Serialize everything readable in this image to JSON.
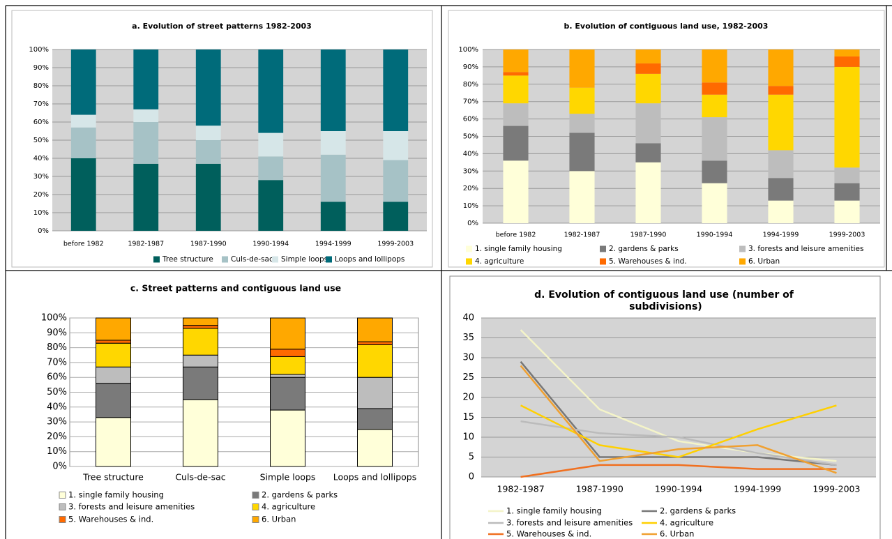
{
  "chart_data": [
    {
      "type": "stacked_bar",
      "title": "a. Evolution of street patterns 1982-2003",
      "categories": [
        "before 1982",
        "1982-1987",
        "1987-1990",
        "1990-1994",
        "1994-1999",
        "1999-2003"
      ],
      "series": [
        {
          "name": "Tree structure",
          "color": "#005f5c",
          "values": [
            40,
            37,
            37,
            28,
            16,
            16
          ]
        },
        {
          "name": "Culs-de-sac",
          "color": "#a6c2c6",
          "values": [
            17,
            23,
            13,
            13,
            26,
            23
          ]
        },
        {
          "name": "Simple loops",
          "color": "#d6e6e8",
          "values": [
            7,
            7,
            8,
            13,
            13,
            16
          ]
        },
        {
          "name": "Loops and lollipops",
          "color": "#006b7a",
          "values": [
            36,
            33,
            42,
            46,
            45,
            45
          ]
        }
      ],
      "ylim": [
        0,
        100
      ],
      "yticks": [
        {
          "value": 0,
          "label": "0%"
        },
        {
          "value": 10,
          "label": "10%"
        },
        {
          "value": 20,
          "label": "20%"
        },
        {
          "value": 30,
          "label": "30%"
        },
        {
          "value": 40,
          "label": "40%"
        },
        {
          "value": 50,
          "label": "50%"
        },
        {
          "value": 60,
          "label": "60%"
        },
        {
          "value": 70,
          "label": "70%"
        },
        {
          "value": 80,
          "label": "80%"
        },
        {
          "value": 90,
          "label": "90%"
        },
        {
          "value": 100,
          "label": "100%"
        }
      ],
      "grid": true
    },
    {
      "type": "stacked_bar",
      "title": "b. Evolution of contiguous land use, 1982-2003",
      "categories": [
        "before 1982",
        "1982-1987",
        "1987-1990",
        "1990-1994",
        "1994-1999",
        "1999-2003"
      ],
      "series": [
        {
          "name": "1. single family housing",
          "color": "#ffffd9",
          "values": [
            36,
            30,
            35,
            23,
            13,
            13
          ]
        },
        {
          "name": "2. gardens & parks",
          "color": "#7a7a7a",
          "values": [
            20,
            22,
            11,
            13,
            13,
            10
          ]
        },
        {
          "name": "3. forests and leisure amenities",
          "color": "#bdbdbd",
          "values": [
            13,
            11,
            23,
            25,
            16,
            9
          ]
        },
        {
          "name": "4. agriculture",
          "color": "#ffd700",
          "values": [
            16,
            15,
            17,
            13,
            32,
            58
          ]
        },
        {
          "name": "5. Warehouses & ind.",
          "color": "#ff6a00",
          "values": [
            2,
            0,
            6,
            7,
            5,
            6
          ]
        },
        {
          "name": "6. Urban",
          "color": "#ffa800",
          "values": [
            13,
            22,
            8,
            19,
            21,
            4
          ]
        }
      ],
      "ylim": [
        0,
        100
      ],
      "yticks": [
        {
          "value": 0,
          "label": "0%"
        },
        {
          "value": 10,
          "label": "10%"
        },
        {
          "value": 20,
          "label": "20%"
        },
        {
          "value": 30,
          "label": "30%"
        },
        {
          "value": 40,
          "label": "40%"
        },
        {
          "value": 50,
          "label": "50%"
        },
        {
          "value": 60,
          "label": "60%"
        },
        {
          "value": 70,
          "label": "70%"
        },
        {
          "value": 80,
          "label": "80%"
        },
        {
          "value": 90,
          "label": "90%"
        },
        {
          "value": 100,
          "label": "100%"
        }
      ],
      "grid": true
    },
    {
      "type": "stacked_bar",
      "title": "c. Street patterns and contiguous land use",
      "categories": [
        "Tree structure",
        "Culs-de-sac",
        "Simple loops",
        "Loops and lollipops"
      ],
      "series": [
        {
          "name": "1. single family housing",
          "color": "#ffffd9",
          "values": [
            33,
            45,
            38,
            25
          ]
        },
        {
          "name": "2. gardens & parks",
          "color": "#7a7a7a",
          "values": [
            23,
            22,
            22,
            14
          ]
        },
        {
          "name": "3. forests and leisure amenities",
          "color": "#bdbdbd",
          "values": [
            11,
            8,
            2,
            21
          ]
        },
        {
          "name": "4. agriculture",
          "color": "#ffd700",
          "values": [
            16,
            18,
            12,
            22
          ]
        },
        {
          "name": "5. Warehouses & ind.",
          "color": "#ff6a00",
          "values": [
            2,
            2,
            5,
            2
          ]
        },
        {
          "name": "6. Urban",
          "color": "#ffa800",
          "values": [
            15,
            5,
            21,
            16
          ]
        }
      ],
      "ylim": [
        0,
        100
      ],
      "yticks": [
        {
          "value": 0,
          "label": "0%"
        },
        {
          "value": 10,
          "label": "10%"
        },
        {
          "value": 20,
          "label": "20%"
        },
        {
          "value": 30,
          "label": "30%"
        },
        {
          "value": 40,
          "label": "40%"
        },
        {
          "value": 50,
          "label": "50%"
        },
        {
          "value": 60,
          "label": "60%"
        },
        {
          "value": 70,
          "label": "70%"
        },
        {
          "value": 80,
          "label": "80%"
        },
        {
          "value": 90,
          "label": "90%"
        },
        {
          "value": 100,
          "label": "100%"
        }
      ],
      "grid": true
    },
    {
      "type": "line",
      "title": "d. Evolution of contiguous land use (number of subdivisions)",
      "categories": [
        "1982-1987",
        "1987-1990",
        "1990-1994",
        "1994-1999",
        "1999-2003"
      ],
      "series": [
        {
          "name": "1. single family housing",
          "color": "#f4f4c8",
          "values": [
            37,
            17,
            9,
            6,
            4
          ]
        },
        {
          "name": "2. gardens & parks",
          "color": "#777777",
          "values": [
            29,
            5,
            5,
            5,
            3
          ]
        },
        {
          "name": "3. forests and leisure amenities",
          "color": "#bbbbbb",
          "values": [
            14,
            11,
            10,
            6,
            3
          ]
        },
        {
          "name": "4. agriculture",
          "color": "#ffd000",
          "values": [
            18,
            8,
            5,
            12,
            18
          ]
        },
        {
          "name": "5. Warehouses & ind.",
          "color": "#f07020",
          "values": [
            0,
            3,
            3,
            2,
            2
          ]
        },
        {
          "name": "6. Urban",
          "color": "#f0a030",
          "values": [
            28,
            4,
            7,
            8,
            1
          ]
        }
      ],
      "ylim": [
        0,
        40
      ],
      "yticks": [
        0,
        5,
        10,
        15,
        20,
        25,
        30,
        35,
        40
      ],
      "grid": true
    }
  ]
}
